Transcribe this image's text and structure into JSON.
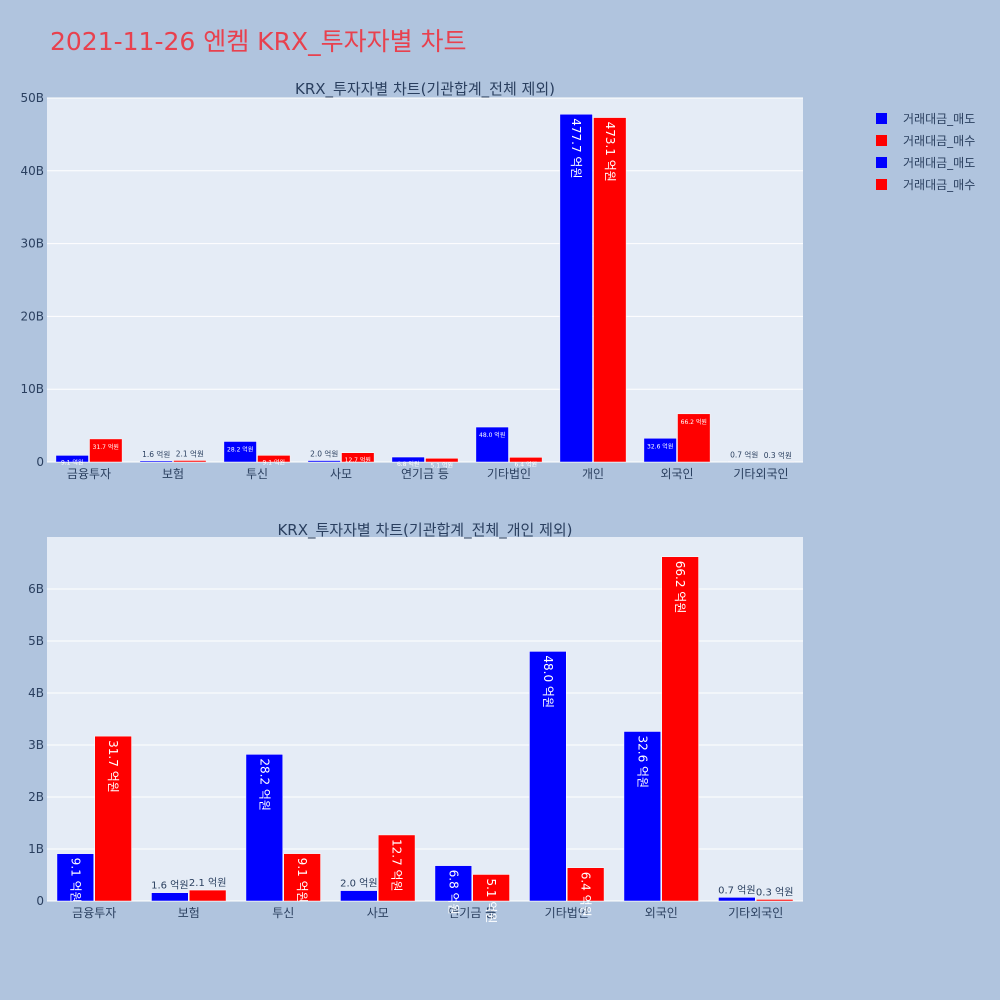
{
  "page_title": "2021-11-26 엔켐 KRX_투자자별 차트",
  "colors": {
    "sell": "#0000ff",
    "buy": "#ff0000",
    "plot_bg": "#e5ecf6",
    "page_bg": "#b0c4de",
    "title": "#e8414e"
  },
  "legend": [
    {
      "label": "거래대금_매도",
      "color": "#0000ff"
    },
    {
      "label": "거래대금_매수",
      "color": "#ff0000"
    },
    {
      "label": "거래대금_매도",
      "color": "#0000ff"
    },
    {
      "label": "거래대금_매수",
      "color": "#ff0000"
    }
  ],
  "chart_data": [
    {
      "type": "bar",
      "title": "KRX_투자자별 차트(기관합계_전체 제외)",
      "categories": [
        "금융투자",
        "보험",
        "투신",
        "사모",
        "연기금 등",
        "기타법인",
        "개인",
        "외국인",
        "기타외국인"
      ],
      "ylim": [
        0,
        50
      ],
      "yticks": [
        0,
        10,
        20,
        30,
        40,
        50
      ],
      "ytick_labels": [
        "0",
        "10B",
        "20B",
        "30B",
        "40B",
        "50B"
      ],
      "grid": true,
      "legend_position": "top-right",
      "series": [
        {
          "name": "거래대금_매도",
          "color": "#0000ff",
          "values": [
            0.91,
            0.16,
            2.82,
            0.2,
            0.68,
            4.8,
            47.77,
            3.26,
            0.07
          ],
          "labels": [
            "9.1 억원",
            "1.6 억원",
            "28.2 억원",
            "2.0 억원",
            "6.8 억원",
            "48.0 억원",
            "477.7 억원",
            "32.6 억원",
            "0.7 억원"
          ]
        },
        {
          "name": "거래대금_매수",
          "color": "#ff0000",
          "values": [
            3.17,
            0.21,
            0.91,
            1.27,
            0.51,
            0.64,
            47.31,
            6.62,
            0.03
          ],
          "labels": [
            "31.7 억원",
            "2.1 억원",
            "9.1 억원",
            "12.7 억원",
            "5.1 억원",
            "6.4 억원",
            "473.1 억원",
            "66.2 억원",
            "0.3 억원"
          ]
        }
      ]
    },
    {
      "type": "bar",
      "title": "KRX_투자자별 차트(기관합계_전체_개인 제외)",
      "categories": [
        "금융투자",
        "보험",
        "투신",
        "사모",
        "연기금 등",
        "기타법인",
        "외국인",
        "기타외국인"
      ],
      "ylim": [
        0,
        7
      ],
      "yticks": [
        0,
        1,
        2,
        3,
        4,
        5,
        6
      ],
      "ytick_labels": [
        "0",
        "1B",
        "2B",
        "3B",
        "4B",
        "5B",
        "6B"
      ],
      "grid": true,
      "series": [
        {
          "name": "거래대금_매도",
          "color": "#0000ff",
          "values": [
            0.91,
            0.16,
            2.82,
            0.2,
            0.68,
            4.8,
            3.26,
            0.07
          ],
          "labels": [
            "9.1 억원",
            "1.6 억원",
            "28.2 억원",
            "2.0 억원",
            "6.8 억원",
            "48.0 억원",
            "32.6 억원",
            "0.7 억원"
          ]
        },
        {
          "name": "거래대금_매수",
          "color": "#ff0000",
          "values": [
            3.17,
            0.21,
            0.91,
            1.27,
            0.51,
            0.64,
            6.62,
            0.03
          ],
          "labels": [
            "31.7 억원",
            "2.1 억원",
            "9.1 억원",
            "12.7 억원",
            "5.1 억원",
            "6.4 억원",
            "66.2 억원",
            "0.3 억원"
          ]
        }
      ]
    }
  ]
}
